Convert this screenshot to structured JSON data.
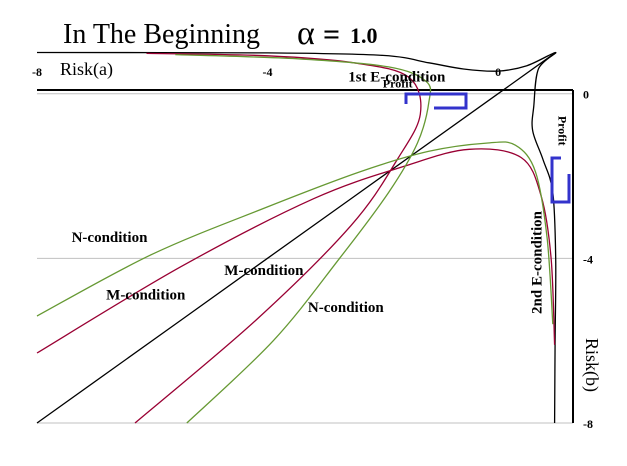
{
  "title": {
    "text": "In The Beginning",
    "alpha_symbol": "α",
    "equals": "=",
    "alpha_value": "1.0"
  },
  "colors": {
    "black": "#000000",
    "red": "#990033",
    "green": "#669933",
    "box": "#3333cc",
    "grid": "#c0c0c0"
  },
  "chart_data": {
    "type": "line",
    "title": "In The Beginning α = 1.0",
    "xlabel": "Risk(a)",
    "ylabel": "Risk(b)",
    "xlim": [
      -8,
      1.3
    ],
    "ylim": [
      -8,
      0.6
    ],
    "x_ticks": [
      "-8",
      "-4",
      "0"
    ],
    "y_ticks": [
      "0",
      "-4",
      "-8"
    ],
    "x_tick_values": [
      -8,
      -4,
      0
    ],
    "y_tick_values": [
      0,
      -4,
      -8
    ],
    "grid": "horizontal",
    "annotations": [
      {
        "text": "1st E-condition",
        "x": -2.6,
        "y": 0.3
      },
      {
        "text": "2nd E-condition",
        "x": 0.75,
        "y": -4.1,
        "rotation": -90
      },
      {
        "text": "Profit",
        "x": -2.0,
        "y": 0.15
      },
      {
        "text": "Profit",
        "x": 1.05,
        "y": -0.9,
        "rotation": 90
      },
      {
        "text": "N-condition",
        "x": -7.4,
        "y": -3.6
      },
      {
        "text": "M-condition",
        "x": -6.8,
        "y": -5.0
      },
      {
        "text": "M-condition",
        "x": -4.75,
        "y": -4.4
      },
      {
        "text": "N-condition",
        "x": -3.3,
        "y": -5.3
      }
    ],
    "series": [
      {
        "color": "black",
        "points": [
          [
            -8,
            -8
          ],
          [
            -4,
            -4
          ],
          [
            0,
            0
          ],
          [
            1.0,
            1.0
          ]
        ]
      },
      {
        "color": "black",
        "points": [
          [
            -8,
            1.0
          ],
          [
            -4,
            0.99
          ],
          [
            -2,
            0.93
          ],
          [
            -1.2,
            0.75
          ],
          [
            -0.6,
            0.6
          ],
          [
            0,
            0.55
          ],
          [
            0.5,
            0.68
          ],
          [
            1.0,
            1.0
          ],
          [
            0.7,
            0.6
          ],
          [
            0.62,
            -0.3
          ],
          [
            0.6,
            -0.9
          ],
          [
            0.78,
            -1.6
          ],
          [
            0.95,
            -2.4
          ],
          [
            1.0,
            -4
          ],
          [
            0.99,
            -6
          ],
          [
            0.98,
            -8
          ]
        ]
      },
      {
        "color": "red",
        "points": [
          [
            -8,
            -6.3
          ],
          [
            -5.5,
            -4.2
          ],
          [
            -3.2,
            -2.55
          ],
          [
            -1.6,
            -1.75
          ],
          [
            -0.5,
            -1.35
          ],
          [
            0.4,
            -1.55
          ],
          [
            0.75,
            -2.5
          ],
          [
            0.92,
            -4.0
          ],
          [
            0.98,
            -6.1
          ]
        ]
      },
      {
        "color": "red",
        "points": [
          [
            -6.3,
            -8
          ],
          [
            -4.2,
            -5.5
          ],
          [
            -2.55,
            -3.2
          ],
          [
            -1.75,
            -1.6
          ],
          [
            -1.35,
            -0.5
          ],
          [
            -1.55,
            0.4
          ],
          [
            -2.5,
            0.75
          ],
          [
            -4.0,
            0.92
          ],
          [
            -6.1,
            0.98
          ]
        ]
      },
      {
        "color": "green",
        "points": [
          [
            -8,
            -5.4
          ],
          [
            -6,
            -3.9
          ],
          [
            -4,
            -2.75
          ],
          [
            -2.4,
            -1.9
          ],
          [
            -1.2,
            -1.4
          ],
          [
            -0.2,
            -1.2
          ],
          [
            0.3,
            -1.25
          ],
          [
            0.65,
            -1.9
          ],
          [
            0.85,
            -3.5
          ],
          [
            0.95,
            -5.6
          ]
        ]
      },
      {
        "color": "green",
        "points": [
          [
            -5.4,
            -8
          ],
          [
            -3.9,
            -6
          ],
          [
            -2.75,
            -4
          ],
          [
            -1.9,
            -2.4
          ],
          [
            -1.4,
            -1.2
          ],
          [
            -1.2,
            -0.2
          ],
          [
            -1.25,
            0.3
          ],
          [
            -1.9,
            0.65
          ],
          [
            -3.5,
            0.85
          ],
          [
            -5.6,
            0.95
          ]
        ]
      }
    ]
  }
}
